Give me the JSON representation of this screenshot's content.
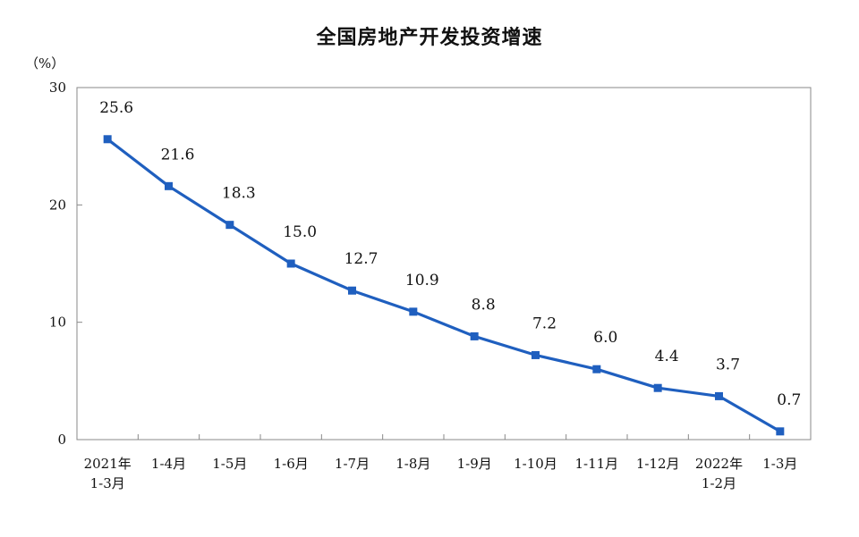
{
  "chart_data": {
    "type": "line",
    "title": "全国房地产开发投资增速",
    "ylabel": "（%）",
    "xlabel": "",
    "ylim": [
      0,
      30
    ],
    "yticks": [
      "0",
      "10",
      "20",
      "30"
    ],
    "grid": false,
    "categories": [
      [
        "2021年",
        "1-3月"
      ],
      [
        "1-4月"
      ],
      [
        "1-5月"
      ],
      [
        "1-6月"
      ],
      [
        "1-7月"
      ],
      [
        "1-8月"
      ],
      [
        "1-9月"
      ],
      [
        "1-10月"
      ],
      [
        "1-11月"
      ],
      [
        "1-12月"
      ],
      [
        "2022年",
        "1-2月"
      ],
      [
        "1-3月"
      ]
    ],
    "series": [
      {
        "values": [
          25.6,
          21.6,
          18.3,
          15.0,
          12.7,
          10.9,
          8.8,
          7.2,
          6.0,
          4.4,
          3.7,
          0.7
        ],
        "labels": [
          "25.6",
          "21.6",
          "18.3",
          "15.0",
          "12.7",
          "10.9",
          "8.8",
          "7.2",
          "6.0",
          "4.4",
          "3.7",
          "0.7"
        ],
        "color": "#1f5fbf"
      }
    ]
  }
}
